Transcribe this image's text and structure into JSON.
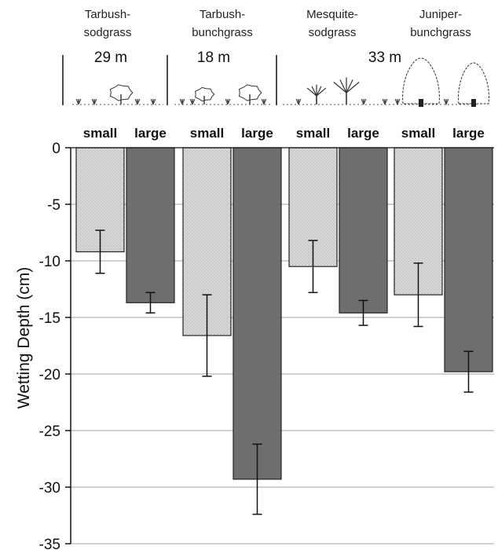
{
  "chart_data": {
    "type": "bar",
    "ylabel": "Wetting Depth (cm)",
    "ylim": [
      -35,
      0
    ],
    "yticks": [
      0,
      -5,
      -10,
      -15,
      -20,
      -25,
      -30,
      -35
    ],
    "grid": true,
    "sites": [
      {
        "name": "Tarbush-sodgrass",
        "line1": "Tarbush-",
        "line2": "sodgrass"
      },
      {
        "name": "Tarbush-bunchgrass",
        "line1": "Tarbush-",
        "line2": "bunchgrass"
      },
      {
        "name": "Mesquite-sodgrass",
        "line1": "Mesquite-",
        "line2": "sodgrass"
      },
      {
        "name": "Juniper-bunchgrass",
        "line1": "Juniper-",
        "line2": "bunchgrass"
      }
    ],
    "distances": [
      "29 m",
      "18 m",
      "33 m"
    ],
    "size_labels": [
      "small",
      "large"
    ],
    "series": [
      {
        "name": "small",
        "color": "#d6d6d6",
        "values": [
          -9.2,
          -16.6,
          -10.5,
          -13.0
        ],
        "errors": [
          1.9,
          3.6,
          2.3,
          2.8
        ]
      },
      {
        "name": "large",
        "color": "#6e6e6e",
        "values": [
          -13.7,
          -29.3,
          -14.6,
          -19.8
        ],
        "errors": [
          0.9,
          3.1,
          1.1,
          1.8
        ]
      }
    ]
  }
}
